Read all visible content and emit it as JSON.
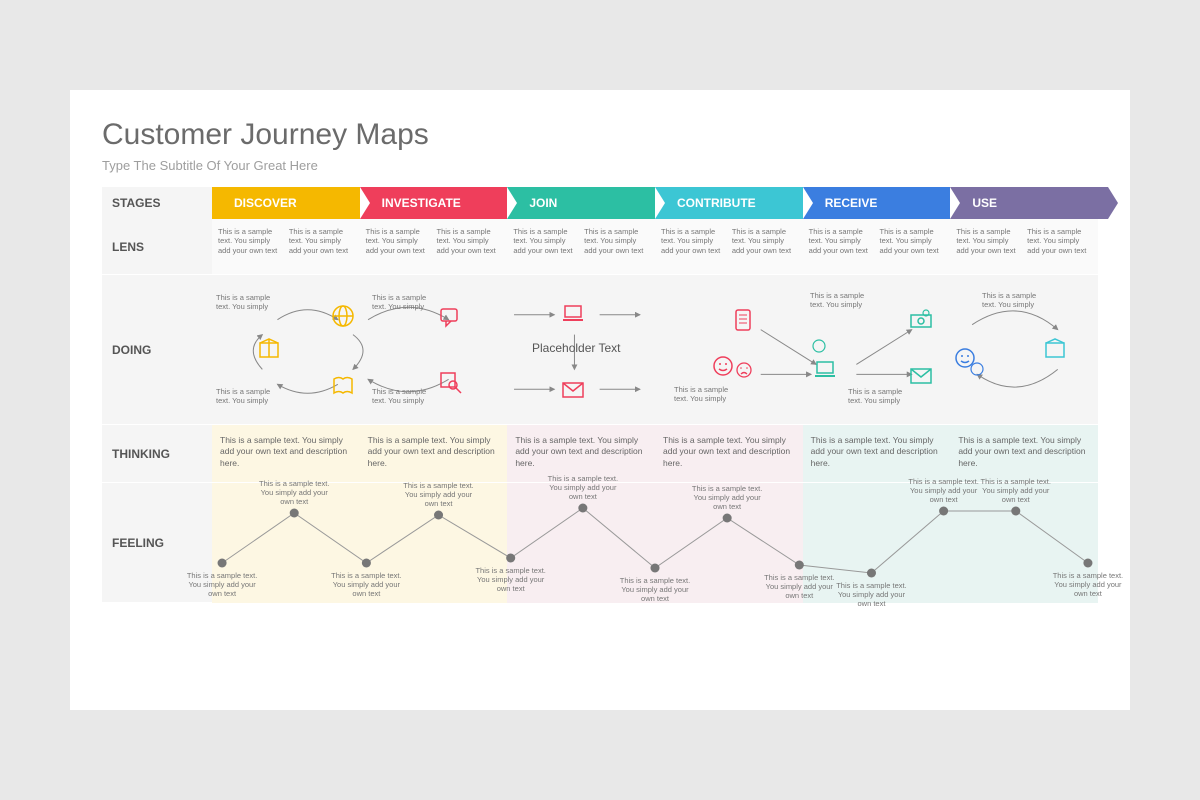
{
  "title": "Customer Journey Maps",
  "subtitle": "Type The Subtitle Of Your Great Here",
  "row_labels": {
    "stages": "STAGES",
    "lens": "LENS",
    "doing": "DOING",
    "thinking": "THINKING",
    "feeling": "FEELING"
  },
  "stages": [
    {
      "label": "DISCOVER",
      "color": "#f5b800",
      "tint": "#fdf7e3"
    },
    {
      "label": "INVESTIGATE",
      "color": "#ef3e5b",
      "tint": "#fdf7e3"
    },
    {
      "label": "JOIN",
      "color": "#2cbfa3",
      "tint": "#f8eef1"
    },
    {
      "label": "CONTRIBUTE",
      "color": "#3cc6d4",
      "tint": "#f8eef1"
    },
    {
      "label": "RECEIVE",
      "color": "#3b7ee0",
      "tint": "#e8f4f2"
    },
    {
      "label": "USE",
      "color": "#7b6fa3",
      "tint": "#e8f4f2"
    }
  ],
  "lens_text": "This is a sample text. You simply add your own text",
  "thinking_text": "This is a sample text. You simply add your own text and description here.",
  "feeling_text": "This is a sample text. You simply add your own text",
  "doing_text": "This is a sample text. You simply",
  "placeholder": "Placeholder Text",
  "feeling_chart": {
    "type": "line",
    "point_color": "#777777",
    "line_color": "#999999",
    "point_radius": 4.5,
    "line_width": 1,
    "y_range": [
      0,
      100
    ],
    "points_y": [
      30,
      80,
      30,
      78,
      35,
      85,
      25,
      75,
      28,
      20,
      82,
      82,
      30
    ]
  },
  "colors": {
    "page_bg": "#e8e8e8",
    "slide_bg": "#ffffff",
    "rowlabel_bg": "#f5f5f5",
    "lens_bg": "#fafafa",
    "text_muted": "#777777",
    "title_color": "#6b6b6b"
  }
}
